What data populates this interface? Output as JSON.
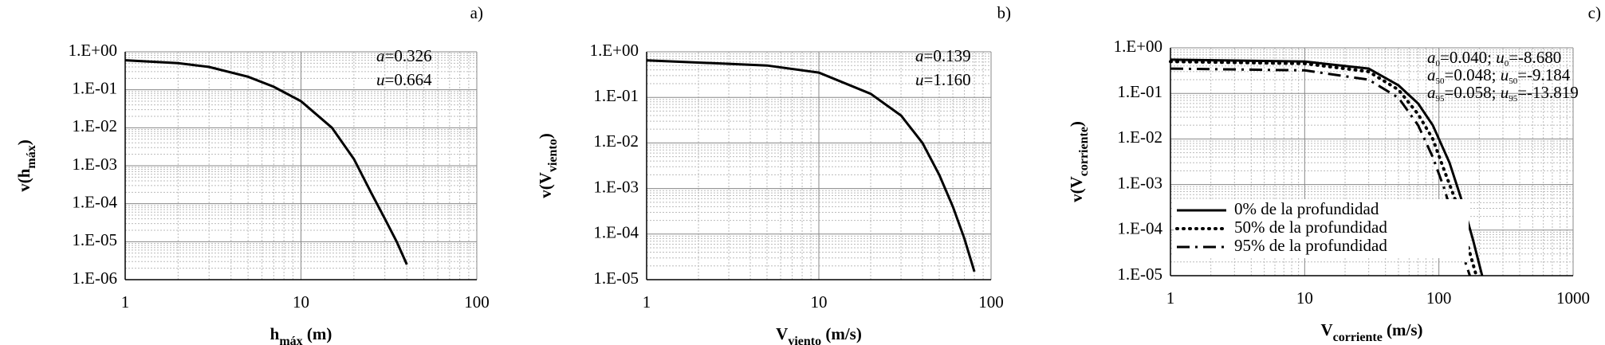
{
  "chart_data": [
    {
      "type": "line",
      "label": "a)",
      "xlabel": [
        {
          "text": "h"
        },
        {
          "text": "máx",
          "style": "sub"
        },
        {
          "text": " (m)"
        }
      ],
      "ylabel": [
        {
          "text": "v(h"
        },
        {
          "text": "máx",
          "style": "sub"
        },
        {
          "text": ")"
        }
      ],
      "xscale": "log",
      "yscale": "log",
      "grid": true,
      "xlim": [
        1,
        100
      ],
      "ylim": [
        1e-06,
        1
      ],
      "xticks": [
        1,
        10,
        100
      ],
      "yticks": [
        {
          "value": 1,
          "label": "1.E+00"
        },
        {
          "value": 0.1,
          "label": "1.E-01"
        },
        {
          "value": 0.01,
          "label": "1.E-02"
        },
        {
          "value": 0.001,
          "label": "1.E-03"
        },
        {
          "value": 0.0001,
          "label": "1.E-04"
        },
        {
          "value": 1e-05,
          "label": "1.E-05"
        },
        {
          "value": 1e-06,
          "label": "1.E-06"
        }
      ],
      "annotations": [
        [
          {
            "text": "a",
            "style": "italic"
          },
          {
            "text": "=0.326"
          }
        ],
        [
          {
            "text": "u",
            "style": "italic"
          },
          {
            "text": "=0.664"
          }
        ]
      ],
      "series": [
        {
          "color": "#000000",
          "style": "solid",
          "x": [
            1,
            2,
            3,
            5,
            7,
            10,
            15,
            20,
            25,
            30,
            35,
            40
          ],
          "values": [
            0.6,
            0.5,
            0.4,
            0.22,
            0.12,
            0.05,
            0.01,
            0.0015,
            0.0002,
            4e-05,
            1e-05,
            2.5e-06
          ]
        }
      ]
    },
    {
      "type": "line",
      "label": "b)",
      "xlabel": [
        {
          "text": "V"
        },
        {
          "text": "viento",
          "style": "sub"
        },
        {
          "text": " (m/s)"
        }
      ],
      "ylabel": [
        {
          "text": "v(V"
        },
        {
          "text": "viento",
          "style": "sub"
        },
        {
          "text": ")"
        }
      ],
      "xscale": "log",
      "yscale": "log",
      "grid": true,
      "xlim": [
        1,
        100
      ],
      "ylim": [
        1e-05,
        1
      ],
      "xticks": [
        1,
        10,
        100
      ],
      "yticks": [
        {
          "value": 1,
          "label": "1.E+00"
        },
        {
          "value": 0.1,
          "label": "1.E-01"
        },
        {
          "value": 0.01,
          "label": "1.E-02"
        },
        {
          "value": 0.001,
          "label": "1.E-03"
        },
        {
          "value": 0.0001,
          "label": "1.E-04"
        },
        {
          "value": 1e-05,
          "label": "1.E-05"
        }
      ],
      "annotations": [
        [
          {
            "text": "a",
            "style": "italic"
          },
          {
            "text": "=0.139"
          }
        ],
        [
          {
            "text": "u",
            "style": "italic"
          },
          {
            "text": "=1.160"
          }
        ]
      ],
      "series": [
        {
          "color": "#000000",
          "style": "solid",
          "x": [
            1,
            5,
            10,
            20,
            30,
            40,
            50,
            60,
            70,
            80
          ],
          "values": [
            0.65,
            0.5,
            0.35,
            0.12,
            0.04,
            0.01,
            0.002,
            0.0004,
            8e-05,
            1.5e-05
          ]
        }
      ]
    },
    {
      "type": "line",
      "label": "c)",
      "xlabel": [
        {
          "text": "V"
        },
        {
          "text": "corriente",
          "style": "sub"
        },
        {
          "text": " (m/s)"
        }
      ],
      "ylabel": [
        {
          "text": "v(V"
        },
        {
          "text": "corriente",
          "style": "sub"
        },
        {
          "text": ")"
        }
      ],
      "xscale": "log",
      "yscale": "log",
      "grid": true,
      "xlim": [
        1,
        1000
      ],
      "ylim": [
        1e-05,
        1
      ],
      "xticks": [
        1,
        10,
        100,
        1000
      ],
      "yticks": [
        {
          "value": 1,
          "label": "1.E+00"
        },
        {
          "value": 0.1,
          "label": "1.E-01"
        },
        {
          "value": 0.01,
          "label": "1.E-02"
        },
        {
          "value": 0.001,
          "label": "1.E-03"
        },
        {
          "value": 0.0001,
          "label": "1.E-04"
        },
        {
          "value": 1e-05,
          "label": "1.E-05"
        }
      ],
      "annotations": [
        [
          {
            "text": "a",
            "style": "italic"
          },
          {
            "text": "0",
            "style": "sub"
          },
          {
            "text": "=0.040; "
          },
          {
            "text": "u",
            "style": "italic"
          },
          {
            "text": "0",
            "style": "sub"
          },
          {
            "text": "=-8.680"
          }
        ],
        [
          {
            "text": "a",
            "style": "italic"
          },
          {
            "text": "50",
            "style": "sub"
          },
          {
            "text": "=0.048; "
          },
          {
            "text": "u",
            "style": "italic"
          },
          {
            "text": "50",
            "style": "sub"
          },
          {
            "text": "=-9.184"
          }
        ],
        [
          {
            "text": "a",
            "style": "italic"
          },
          {
            "text": "95",
            "style": "sub"
          },
          {
            "text": "=0.058; "
          },
          {
            "text": "u",
            "style": "italic"
          },
          {
            "text": "95",
            "style": "sub"
          },
          {
            "text": "=-13.819"
          }
        ]
      ],
      "legend": "lower left",
      "series": [
        {
          "name": "0% de la profundidad",
          "color": "#000000",
          "style": "solid",
          "x": [
            1,
            10,
            30,
            50,
            70,
            90,
            120,
            150,
            180,
            210
          ],
          "values": [
            0.55,
            0.5,
            0.35,
            0.15,
            0.06,
            0.02,
            0.003,
            0.0004,
            6e-05,
            1e-05
          ]
        },
        {
          "name": "50% de la profundidad",
          "color": "#000000",
          "style": "dotted",
          "x": [
            1,
            10,
            30,
            50,
            70,
            90,
            110,
            140,
            160,
            190
          ],
          "values": [
            0.5,
            0.45,
            0.3,
            0.12,
            0.035,
            0.01,
            0.002,
            0.0003,
            6e-05,
            1e-05
          ]
        },
        {
          "name": "95% de la profundidad",
          "color": "#000000",
          "style": "dashdot",
          "x": [
            1,
            10,
            30,
            50,
            70,
            90,
            110,
            130,
            150,
            170
          ],
          "values": [
            0.35,
            0.32,
            0.2,
            0.08,
            0.02,
            0.004,
            0.0008,
            0.00015,
            3e-05,
            1e-05
          ]
        }
      ]
    }
  ]
}
